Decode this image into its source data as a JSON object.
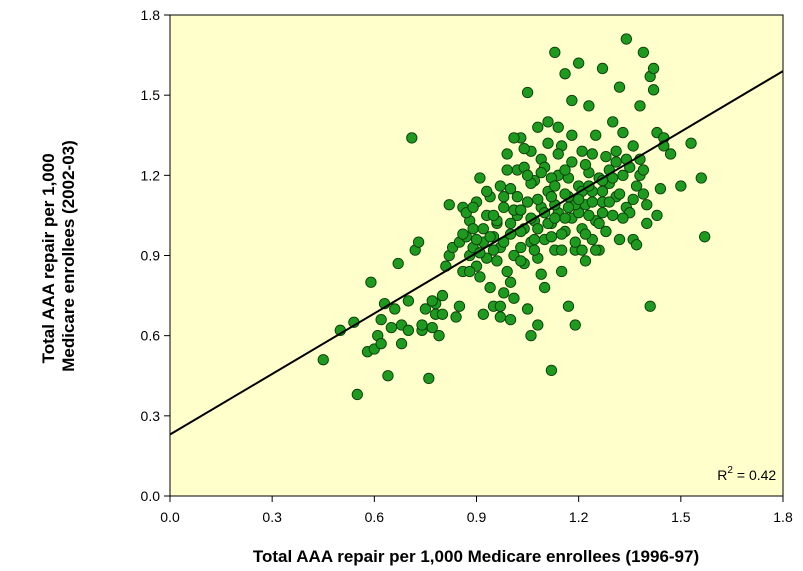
{
  "chart_data": {
    "type": "scatter",
    "title": "",
    "xlabel": "Total AAA repair per 1,000 Medicare enrollees (1996-97)",
    "ylabel_line1": "Total AAA repair per 1,000",
    "ylabel_line2": "Medicare enrollees (2002-03)",
    "xlim": [
      0.0,
      1.8
    ],
    "ylim": [
      0.0,
      1.8
    ],
    "x_ticks": [
      "0.0",
      "0.3",
      "0.6",
      "0.9",
      "1.2",
      "1.5",
      "1.8"
    ],
    "y_ticks": [
      "0.0",
      "0.3",
      "0.6",
      "0.9",
      "1.2",
      "1.5",
      "1.8"
    ],
    "grid": false,
    "background_color": "#ffffcc",
    "point_color": "#1e9a1e",
    "point_edge_color": "#0a3d0a",
    "annotation": {
      "text": "R",
      "sup": "2",
      "rest": " = 0.42",
      "x": 1.78,
      "y": 0.06
    },
    "trendline": {
      "x0": 0.0,
      "y0": 0.23,
      "x1": 1.8,
      "y1": 1.59
    },
    "points": [
      [
        0.45,
        0.51
      ],
      [
        0.5,
        0.62
      ],
      [
        0.54,
        0.65
      ],
      [
        0.55,
        0.38
      ],
      [
        0.58,
        0.54
      ],
      [
        0.59,
        0.8
      ],
      [
        0.6,
        0.55
      ],
      [
        0.61,
        0.6
      ],
      [
        0.62,
        0.57
      ],
      [
        0.62,
        0.66
      ],
      [
        0.63,
        0.72
      ],
      [
        0.64,
        0.45
      ],
      [
        0.65,
        0.63
      ],
      [
        0.66,
        0.7
      ],
      [
        0.67,
        0.87
      ],
      [
        0.68,
        0.57
      ],
      [
        0.68,
        0.64
      ],
      [
        0.7,
        0.73
      ],
      [
        0.71,
        1.34
      ],
      [
        0.72,
        0.92
      ],
      [
        0.73,
        0.95
      ],
      [
        0.74,
        0.62
      ],
      [
        0.75,
        0.7
      ],
      [
        0.76,
        0.44
      ],
      [
        0.77,
        0.63
      ],
      [
        0.78,
        0.68
      ],
      [
        0.78,
        0.72
      ],
      [
        0.79,
        0.6
      ],
      [
        0.8,
        0.75
      ],
      [
        0.81,
        0.86
      ],
      [
        0.82,
        0.9
      ],
      [
        0.82,
        1.09
      ],
      [
        0.83,
        0.93
      ],
      [
        0.84,
        0.67
      ],
      [
        0.85,
        0.71
      ],
      [
        0.85,
        0.95
      ],
      [
        0.86,
        1.08
      ],
      [
        0.86,
        0.84
      ],
      [
        0.87,
        0.97
      ],
      [
        0.88,
        0.9
      ],
      [
        0.88,
        1.03
      ],
      [
        0.89,
        0.93
      ],
      [
        0.89,
        1.0
      ],
      [
        0.9,
        1.1
      ],
      [
        0.9,
        0.86
      ],
      [
        0.91,
        0.82
      ],
      [
        0.91,
        1.19
      ],
      [
        0.92,
        0.68
      ],
      [
        0.92,
        0.95
      ],
      [
        0.93,
        0.89
      ],
      [
        0.93,
        1.05
      ],
      [
        0.94,
        0.78
      ],
      [
        0.94,
        1.12
      ],
      [
        0.95,
        0.71
      ],
      [
        0.95,
        0.97
      ],
      [
        0.96,
        0.88
      ],
      [
        0.96,
        1.02
      ],
      [
        0.97,
        0.67
      ],
      [
        0.97,
        0.93
      ],
      [
        0.98,
        0.76
      ],
      [
        0.98,
        1.08
      ],
      [
        0.99,
        1.28
      ],
      [
        0.99,
        0.84
      ],
      [
        1.0,
        0.98
      ],
      [
        1.0,
        1.15
      ],
      [
        1.01,
        0.9
      ],
      [
        1.01,
        0.74
      ],
      [
        1.02,
        1.05
      ],
      [
        1.02,
        1.22
      ],
      [
        1.03,
        0.93
      ],
      [
        1.03,
        1.34
      ],
      [
        1.04,
        1.0
      ],
      [
        1.04,
        0.87
      ],
      [
        1.05,
        1.1
      ],
      [
        1.05,
        1.51
      ],
      [
        1.06,
        0.6
      ],
      [
        1.06,
        0.95
      ],
      [
        1.07,
        1.18
      ],
      [
        1.07,
        1.03
      ],
      [
        1.08,
        0.64
      ],
      [
        1.08,
        0.89
      ],
      [
        1.09,
        1.26
      ],
      [
        1.09,
        1.08
      ],
      [
        1.1,
        0.78
      ],
      [
        1.1,
        0.96
      ],
      [
        1.11,
        1.4
      ],
      [
        1.11,
        1.14
      ],
      [
        1.12,
        0.47
      ],
      [
        1.12,
        1.02
      ],
      [
        1.13,
        1.66
      ],
      [
        1.13,
        0.92
      ],
      [
        1.14,
        1.2
      ],
      [
        1.14,
        1.06
      ],
      [
        1.15,
        0.84
      ],
      [
        1.15,
        1.31
      ],
      [
        1.16,
        1.58
      ],
      [
        1.16,
        0.99
      ],
      [
        1.17,
        1.12
      ],
      [
        1.17,
        0.71
      ],
      [
        1.18,
        1.25
      ],
      [
        1.18,
        1.04
      ],
      [
        1.19,
        0.64
      ],
      [
        1.19,
        0.92
      ],
      [
        1.2,
        1.16
      ],
      [
        1.2,
        1.62
      ],
      [
        1.21,
        1.0
      ],
      [
        1.21,
        1.29
      ],
      [
        1.22,
        1.09
      ],
      [
        1.22,
        0.88
      ],
      [
        1.23,
        1.21
      ],
      [
        1.23,
        1.46
      ],
      [
        1.24,
        0.96
      ],
      [
        1.24,
        1.14
      ],
      [
        1.25,
        1.03
      ],
      [
        1.25,
        1.35
      ],
      [
        1.26,
        1.19
      ],
      [
        1.26,
        0.92
      ],
      [
        1.27,
        1.6
      ],
      [
        1.27,
        1.1
      ],
      [
        1.28,
        1.27
      ],
      [
        1.28,
        0.99
      ],
      [
        1.29,
        1.17
      ],
      [
        1.3,
        1.4
      ],
      [
        1.3,
        1.05
      ],
      [
        1.31,
        1.25
      ],
      [
        1.31,
        1.12
      ],
      [
        1.32,
        0.96
      ],
      [
        1.32,
        1.53
      ],
      [
        1.33,
        1.36
      ],
      [
        1.33,
        1.2
      ],
      [
        1.34,
        1.71
      ],
      [
        1.34,
        1.08
      ],
      [
        1.35,
        1.23
      ],
      [
        1.36,
        0.96
      ],
      [
        1.36,
        1.31
      ],
      [
        1.37,
        1.16
      ],
      [
        1.37,
        0.94
      ],
      [
        1.38,
        1.46
      ],
      [
        1.38,
        1.26
      ],
      [
        1.39,
        1.66
      ],
      [
        1.39,
        1.13
      ],
      [
        1.4,
        1.02
      ],
      [
        1.41,
        1.57
      ],
      [
        1.41,
        0.71
      ],
      [
        1.42,
        1.52
      ],
      [
        1.42,
        1.6
      ],
      [
        1.43,
        1.36
      ],
      [
        1.44,
        1.15
      ],
      [
        1.45,
        1.34
      ],
      [
        1.45,
        1.31
      ],
      [
        1.47,
        1.28
      ],
      [
        1.5,
        1.16
      ],
      [
        1.53,
        1.32
      ],
      [
        1.56,
        1.19
      ],
      [
        1.57,
        0.97
      ],
      [
        1.05,
        0.7
      ],
      [
        1.0,
        0.66
      ],
      [
        0.97,
        0.71
      ],
      [
        1.09,
        0.83
      ],
      [
        1.15,
        0.98
      ],
      [
        1.18,
        1.35
      ],
      [
        1.21,
        1.14
      ],
      [
        1.12,
        1.19
      ],
      [
        1.08,
        1.11
      ],
      [
        1.04,
        1.23
      ],
      [
        1.01,
        1.07
      ],
      [
        0.96,
        1.03
      ],
      [
        0.92,
        1.0
      ],
      [
        0.99,
        1.22
      ],
      [
        1.06,
        1.29
      ],
      [
        1.1,
        1.23
      ],
      [
        1.14,
        1.28
      ],
      [
        1.17,
        1.19
      ],
      [
        1.2,
        1.06
      ],
      [
        1.24,
        1.1
      ],
      [
        1.27,
        1.06
      ],
      [
        1.29,
        1.22
      ],
      [
        1.32,
        1.13
      ],
      [
        1.35,
        1.06
      ],
      [
        1.26,
        1.02
      ],
      [
        1.22,
        0.98
      ],
      [
        1.19,
        0.95
      ],
      [
        1.16,
        1.04
      ],
      [
        1.13,
        1.09
      ],
      [
        1.11,
        1.02
      ],
      [
        1.07,
        0.96
      ],
      [
        1.03,
        0.99
      ],
      [
        1.0,
        1.02
      ],
      [
        0.98,
        0.95
      ],
      [
        0.94,
        0.97
      ],
      [
        0.9,
        0.96
      ],
      [
        0.87,
        1.06
      ],
      [
        0.86,
        0.98
      ],
      [
        0.89,
        1.08
      ],
      [
        0.93,
        1.14
      ],
      [
        0.97,
        1.16
      ],
      [
        1.02,
        1.12
      ],
      [
        1.06,
        1.17
      ],
      [
        1.09,
        1.21
      ],
      [
        1.13,
        1.16
      ],
      [
        1.16,
        1.13
      ],
      [
        1.19,
        1.09
      ],
      [
        1.23,
        1.16
      ],
      [
        1.27,
        1.14
      ],
      [
        1.3,
        1.19
      ],
      [
        1.34,
        1.26
      ],
      [
        1.38,
        1.2
      ],
      [
        1.4,
        1.09
      ],
      [
        1.43,
        1.05
      ],
      [
        1.11,
        1.32
      ],
      [
        1.14,
        1.38
      ],
      [
        1.08,
        1.38
      ],
      [
        1.04,
        1.3
      ],
      [
        1.01,
        1.34
      ],
      [
        1.18,
        1.48
      ],
      [
        1.24,
        1.28
      ],
      [
        1.0,
        0.8
      ],
      [
        0.95,
        0.92
      ],
      [
        0.91,
        0.91
      ],
      [
        0.88,
        0.84
      ],
      [
        1.03,
        0.88
      ],
      [
        1.07,
        0.92
      ],
      [
        1.12,
        0.97
      ],
      [
        1.15,
        0.92
      ],
      [
        1.21,
        0.92
      ],
      [
        1.25,
        0.92
      ],
      [
        1.03,
        1.07
      ],
      [
        1.06,
        1.04
      ],
      [
        1.1,
        1.06
      ],
      [
        1.13,
        1.04
      ],
      [
        1.17,
        1.08
      ],
      [
        1.2,
        1.11
      ],
      [
        1.23,
        1.05
      ],
      [
        1.27,
        1.18
      ],
      [
        1.31,
        1.29
      ],
      [
        1.36,
        1.11
      ],
      [
        1.39,
        1.22
      ],
      [
        0.95,
        1.05
      ],
      [
        0.98,
        1.12
      ],
      [
        1.08,
        1.0
      ],
      [
        1.12,
        1.12
      ],
      [
        1.05,
        1.2
      ],
      [
        1.16,
        1.22
      ],
      [
        1.22,
        1.24
      ],
      [
        1.29,
        1.1
      ],
      [
        1.33,
        1.04
      ],
      [
        0.8,
        0.68
      ],
      [
        0.77,
        0.73
      ],
      [
        0.74,
        0.64
      ],
      [
        0.7,
        0.62
      ]
    ]
  }
}
